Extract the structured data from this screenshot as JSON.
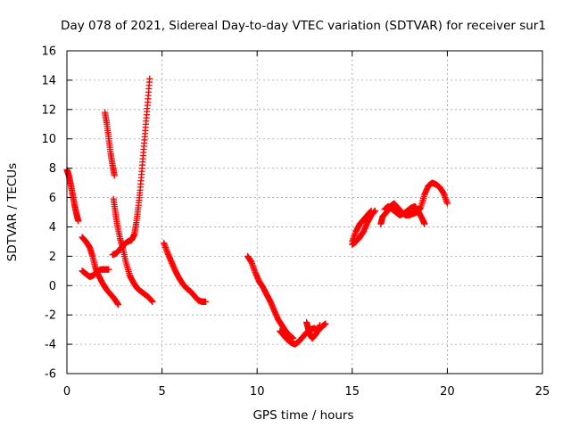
{
  "chart_data": {
    "type": "scatter",
    "title": "Day 078 of 2021, Sidereal Day-to-day VTEC variation (SDTVAR) for receiver sur1",
    "xlabel": "GPS time / hours",
    "ylabel": "SDTVAR / TECUs",
    "xlim": [
      0,
      25
    ],
    "ylim": [
      -6,
      16
    ],
    "xticks": [
      "0",
      "5",
      "10",
      "15",
      "20",
      "25"
    ],
    "yticks": [
      "-6",
      "-4",
      "-2",
      "0",
      "2",
      "4",
      "6",
      "8",
      "10",
      "12",
      "14",
      "16"
    ],
    "grid": true,
    "marker": "+",
    "color": "#ff0000",
    "tracks": [
      [
        [
          0.0,
          7.9
        ],
        [
          0.1,
          7.5
        ],
        [
          0.2,
          6.9
        ],
        [
          0.3,
          6.2
        ],
        [
          0.4,
          5.5
        ],
        [
          0.5,
          4.9
        ],
        [
          0.6,
          4.4
        ]
      ],
      [
        [
          0.8,
          3.3
        ],
        [
          1.0,
          3.0
        ],
        [
          1.2,
          2.6
        ],
        [
          1.35,
          2.0
        ],
        [
          1.5,
          1.2
        ],
        [
          1.7,
          0.6
        ],
        [
          1.9,
          0.1
        ],
        [
          2.1,
          -0.3
        ],
        [
          2.3,
          -0.6
        ],
        [
          2.5,
          -0.9
        ],
        [
          2.7,
          -1.3
        ]
      ],
      [
        [
          0.8,
          1.0
        ],
        [
          1.0,
          0.8
        ],
        [
          1.2,
          0.6
        ],
        [
          1.4,
          0.7
        ],
        [
          1.6,
          1.0
        ],
        [
          1.8,
          1.1
        ],
        [
          2.0,
          1.1
        ],
        [
          2.2,
          1.1
        ]
      ],
      [
        [
          2.0,
          11.8
        ],
        [
          2.1,
          11.0
        ],
        [
          2.2,
          10.0
        ],
        [
          2.3,
          9.0
        ],
        [
          2.4,
          8.2
        ],
        [
          2.5,
          7.5
        ]
      ],
      [
        [
          2.45,
          5.9
        ],
        [
          2.55,
          5.0
        ],
        [
          2.65,
          4.1
        ],
        [
          2.8,
          3.2
        ],
        [
          2.95,
          2.5
        ],
        [
          3.1,
          1.6
        ],
        [
          3.3,
          0.7
        ],
        [
          3.5,
          0.2
        ],
        [
          3.7,
          -0.2
        ],
        [
          3.9,
          -0.4
        ],
        [
          4.1,
          -0.6
        ],
        [
          4.3,
          -0.8
        ],
        [
          4.5,
          -1.1
        ]
      ],
      [
        [
          2.4,
          2.1
        ],
        [
          2.6,
          2.2
        ],
        [
          2.8,
          2.5
        ],
        [
          3.0,
          2.8
        ],
        [
          3.2,
          3.0
        ],
        [
          3.4,
          3.1
        ],
        [
          3.55,
          3.5
        ],
        [
          3.65,
          4.3
        ],
        [
          3.75,
          5.3
        ],
        [
          3.85,
          6.5
        ],
        [
          3.95,
          8.0
        ],
        [
          4.05,
          9.5
        ],
        [
          4.15,
          11.0
        ],
        [
          4.25,
          12.5
        ],
        [
          4.35,
          14.1
        ]
      ],
      [
        [
          5.1,
          2.9
        ],
        [
          5.3,
          2.2
        ],
        [
          5.5,
          1.6
        ],
        [
          5.7,
          1.0
        ],
        [
          5.9,
          0.5
        ],
        [
          6.1,
          0.1
        ],
        [
          6.3,
          -0.2
        ],
        [
          6.5,
          -0.4
        ],
        [
          6.7,
          -0.7
        ],
        [
          6.9,
          -1.0
        ],
        [
          7.1,
          -1.1
        ],
        [
          7.3,
          -1.1
        ]
      ],
      [
        [
          9.5,
          2.0
        ],
        [
          9.7,
          1.6
        ],
        [
          9.9,
          0.9
        ],
        [
          10.1,
          0.3
        ],
        [
          10.3,
          -0.1
        ],
        [
          10.5,
          -0.6
        ],
        [
          10.7,
          -1.1
        ],
        [
          10.9,
          -1.7
        ],
        [
          11.1,
          -2.3
        ],
        [
          11.3,
          -2.7
        ],
        [
          11.5,
          -3.1
        ],
        [
          11.7,
          -3.4
        ],
        [
          11.9,
          -3.6
        ]
      ],
      [
        [
          11.2,
          -3.1
        ],
        [
          11.4,
          -3.4
        ],
        [
          11.6,
          -3.7
        ],
        [
          11.8,
          -3.9
        ],
        [
          12.0,
          -4.0
        ],
        [
          12.2,
          -3.8
        ],
        [
          12.4,
          -3.5
        ],
        [
          12.6,
          -3.2
        ],
        [
          12.8,
          -3.0
        ],
        [
          13.0,
          -2.9
        ],
        [
          13.2,
          -3.1
        ],
        [
          13.4,
          -2.8
        ],
        [
          13.6,
          -2.6
        ]
      ],
      [
        [
          12.6,
          -2.5
        ],
        [
          12.7,
          -3.0
        ],
        [
          12.8,
          -3.4
        ],
        [
          12.9,
          -3.6
        ],
        [
          13.1,
          -3.3
        ],
        [
          13.3,
          -2.7
        ]
      ],
      [
        [
          15.0,
          2.8
        ],
        [
          15.2,
          3.0
        ],
        [
          15.4,
          3.3
        ],
        [
          15.6,
          3.7
        ],
        [
          15.8,
          4.3
        ],
        [
          16.0,
          4.8
        ],
        [
          16.2,
          5.1
        ]
      ],
      [
        [
          15.0,
          3.0
        ],
        [
          15.2,
          3.7
        ],
        [
          15.4,
          4.2
        ],
        [
          15.6,
          4.5
        ],
        [
          15.8,
          4.8
        ],
        [
          16.0,
          5.1
        ]
      ],
      [
        [
          16.5,
          4.2
        ],
        [
          16.6,
          4.7
        ],
        [
          16.8,
          5.0
        ],
        [
          17.0,
          5.4
        ],
        [
          17.2,
          5.6
        ],
        [
          17.4,
          5.3
        ],
        [
          17.6,
          5.0
        ],
        [
          17.8,
          4.8
        ],
        [
          18.0,
          4.8
        ],
        [
          18.2,
          4.9
        ],
        [
          18.4,
          5.0
        ],
        [
          18.6,
          5.3
        ],
        [
          18.8,
          6.2
        ],
        [
          19.0,
          6.8
        ],
        [
          19.2,
          7.0
        ],
        [
          19.4,
          6.9
        ],
        [
          19.6,
          6.7
        ],
        [
          19.8,
          6.3
        ],
        [
          20.0,
          5.6
        ]
      ],
      [
        [
          16.7,
          5.2
        ],
        [
          16.9,
          5.4
        ],
        [
          17.1,
          5.2
        ],
        [
          17.3,
          5.0
        ],
        [
          17.5,
          4.8
        ],
        [
          17.7,
          4.9
        ],
        [
          17.9,
          5.1
        ],
        [
          18.1,
          5.3
        ],
        [
          18.3,
          5.4
        ],
        [
          18.5,
          5.0
        ],
        [
          18.7,
          4.5
        ],
        [
          18.8,
          4.2
        ]
      ]
    ]
  }
}
